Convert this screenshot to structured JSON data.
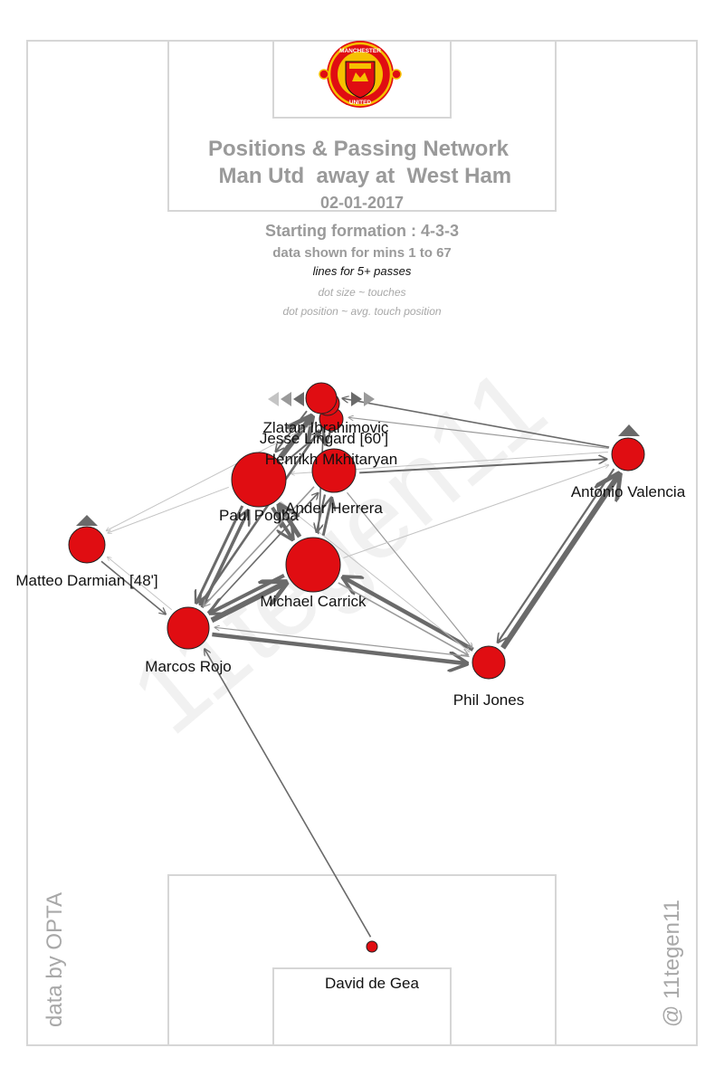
{
  "header": {
    "title_line1": "Positions & Passing Network",
    "title_line2": " Man Utd  away at  West Ham",
    "date": "02-01-2017",
    "formation": "Starting formation : 4-3-3",
    "minutes": "data shown for mins 1 to 67",
    "lines_note": "lines for 5+ passes",
    "size_note": "dot size ~ touches",
    "position_note": "dot position ~ avg. touch position"
  },
  "crest": {
    "icon": "man-utd-crest-icon",
    "top_text": "MANCHESTER",
    "bottom_text": "UNITED"
  },
  "footer": {
    "source": "data by OPTA",
    "credit": "@ 11tegen11"
  },
  "colors": {
    "dot": "#e00d12",
    "line": "#6a6a6a",
    "light_line": "#c4c4c4",
    "pitch": "#d6d6d6"
  },
  "players": [
    {
      "name": "David de Gea"
    },
    {
      "name": "Marcos Rojo"
    },
    {
      "name": "Phil Jones"
    },
    {
      "name": "Matteo Darmian [48']"
    },
    {
      "name": "Antonio Valencia"
    },
    {
      "name": "Michael Carrick"
    },
    {
      "name": "Paul Pogba"
    },
    {
      "name": "Ander Herrera"
    },
    {
      "name": "Henrikh Mkhitaryan"
    },
    {
      "name": "Jesse Lingard [60']"
    },
    {
      "name": "Zlatan Ibrahimovic"
    }
  ]
}
